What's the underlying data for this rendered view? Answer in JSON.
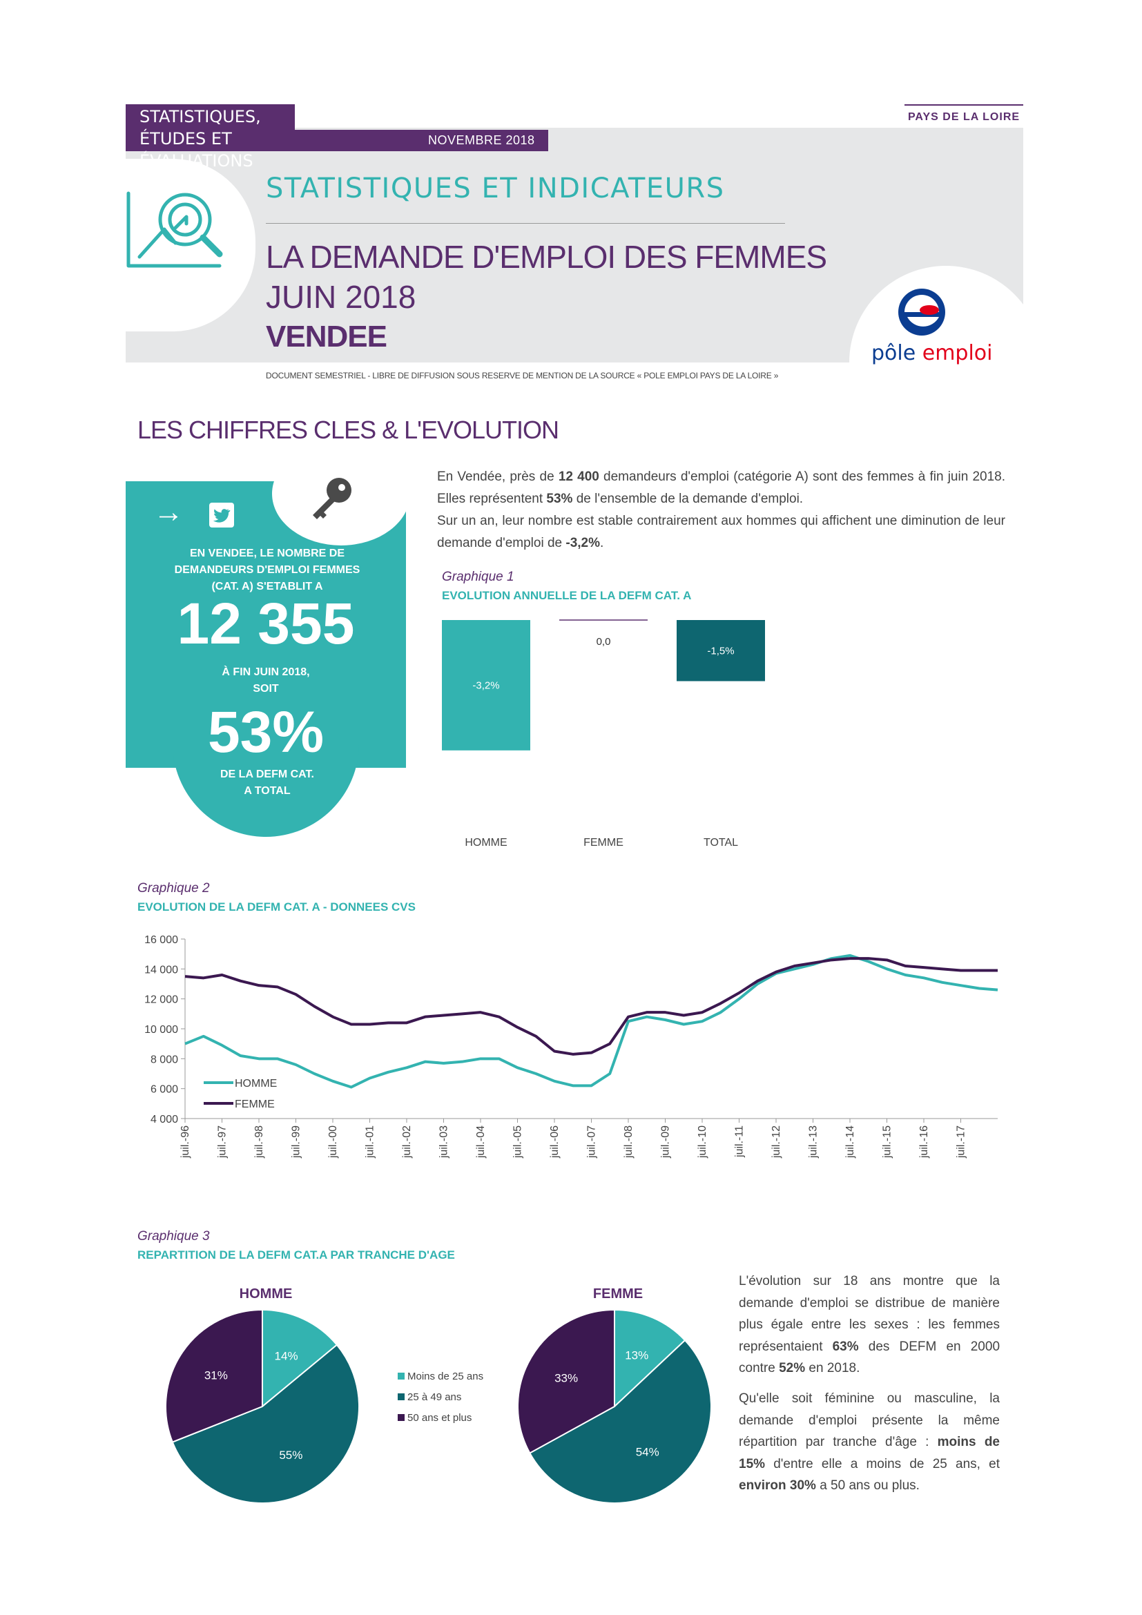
{
  "header": {
    "department_line1": "STATISTIQUES,",
    "department_line2": "ÉTUDES ET ÉVALUATIONS",
    "date": "NOVEMBRE 2018",
    "region": "PAYS DE LA LOIRE",
    "subtitle": "STATISTIQUES ET INDICATEURS",
    "title_line1": "LA DEMANDE D'EMPLOI DES FEMMES",
    "title_line2": "JUIN 2018",
    "title_line3": "VENDEE",
    "note": "DOCUMENT SEMESTRIEL - LIBRE DE DIFFUSION SOUS RESERVE DE MENTION DE LA SOURCE « POLE EMPLOI PAYS DE LA LOIRE »",
    "logo_text": "pôle emploi",
    "logo_colors": {
      "blue": "#0b3d91",
      "red": "#e2001a"
    }
  },
  "section_title": "LES CHIFFRES CLES &  L'EVOLUTION",
  "key_card": {
    "line1": "EN VENDEE, LE NOMBRE DE",
    "line2": "DEMANDEURS D'EMPLOI FEMMES",
    "line3": "(CAT. A) S'ETABLIT A",
    "big_number": "12 355",
    "line4": "À FIN JUIN 2018,",
    "line5": "SOIT",
    "big_pct": "53%",
    "line6": "DE LA DEFM CAT.",
    "line7": "A TOTAL",
    "arrow": "→",
    "icons": [
      "twitter-icon",
      "key-icon"
    ]
  },
  "intro": {
    "p1_a": "En Vendée, près de ",
    "p1_b": "12 400",
    "p1_c": " demandeurs d'emploi (catégorie A) sont des femmes à fin juin 2018. Elles représentent ",
    "p1_d": "53%",
    "p1_e": " de l'ensemble de la demande d'emploi.",
    "p2_a": "Sur un an, leur nombre est stable contrairement aux hommes qui affichent une diminution de leur demande d'emploi de ",
    "p2_b": "-3,2%",
    "p2_c": "."
  },
  "graph1": {
    "label": "Graphique 1",
    "title": "EVOLUTION ANNUELLE DE LA DEFM CAT. A"
  },
  "graph2": {
    "label": "Graphique 2",
    "title": "EVOLUTION DE LA DEFM CAT. A - DONNEES CVS"
  },
  "graph3": {
    "label": "Graphique 3",
    "title": "REPARTITION DE LA DEFM CAT.A PAR TRANCHE D'AGE"
  },
  "colors": {
    "teal": "#33b3b0",
    "dark_teal": "#0e6670",
    "purple": "#5a2e6e",
    "dark_purple": "#3b1850"
  },
  "outro": {
    "p1_a": "L'évolution sur 18 ans montre que la demande d'emploi se distribue de manière plus égale entre les sexes : les femmes représentaient ",
    "p1_b": "63%",
    "p1_c": " des DEFM en 2000 contre ",
    "p1_d": "52%",
    "p1_e": "  en 2018.",
    "p2_a": "Qu'elle soit féminine ou masculine, la demande d'emploi présente la même répartition par tranche d'âge : ",
    "p2_b": "moins de 15%",
    "p2_c": " d'entre elle a moins de 25 ans, et ",
    "p2_d": "environ 30%",
    "p2_e": " a 50 ans ou plus."
  },
  "chart_data": [
    {
      "type": "bar",
      "categories": [
        "HOMME",
        "FEMME",
        "TOTAL"
      ],
      "values": [
        -3.2,
        0.0,
        -1.5
      ],
      "value_labels": [
        "-3,2%",
        "0,0",
        "-1,5%"
      ],
      "colors": [
        "#33b3b0",
        "#5a2e6e",
        "#0e6670"
      ]
    },
    {
      "type": "line",
      "ylim": [
        4000,
        16000
      ],
      "yticks": [
        "16 000",
        "14 000",
        "12 000",
        "10 000",
        "8 000",
        "6 000",
        "4 000"
      ],
      "ytick_values": [
        16000,
        14000,
        12000,
        10000,
        8000,
        6000,
        4000
      ],
      "xticks": [
        "juil.-96",
        "juil.-97",
        "juil.-98",
        "juil.-99",
        "juil.-00",
        "juil.-01",
        "juil.-02",
        "juil.-03",
        "juil.-04",
        "juil.-05",
        "juil.-06",
        "juil.-07",
        "juil.-08",
        "juil.-09",
        "juil.-10",
        "juil.-11",
        "juil.-12",
        "juil.-13",
        "juil.-14",
        "juil.-15",
        "juil.-16",
        "juil.-17"
      ],
      "x": [
        1996.5,
        1997.0,
        1997.5,
        1998.0,
        1998.5,
        1999.0,
        1999.5,
        2000.0,
        2000.5,
        2001.0,
        2001.5,
        2002.0,
        2002.5,
        2003.0,
        2003.5,
        2004.0,
        2004.5,
        2005.0,
        2005.5,
        2006.0,
        2006.5,
        2007.0,
        2007.5,
        2008.0,
        2008.5,
        2009.0,
        2009.5,
        2010.0,
        2010.5,
        2011.0,
        2011.5,
        2012.0,
        2012.5,
        2013.0,
        2013.5,
        2014.0,
        2014.5,
        2015.0,
        2015.5,
        2016.0,
        2016.5,
        2017.0,
        2017.5,
        2018.0,
        2018.5
      ],
      "series": [
        {
          "name": "HOMME",
          "color": "#33b3b0",
          "values": [
            9000,
            9500,
            8900,
            8200,
            8000,
            8000,
            7600,
            7000,
            6500,
            6100,
            6700,
            7100,
            7400,
            7800,
            7700,
            7800,
            8000,
            8000,
            7400,
            7000,
            6500,
            6200,
            6200,
            7000,
            10500,
            10800,
            10600,
            10300,
            10500,
            11100,
            12000,
            13000,
            13700,
            14000,
            14300,
            14700,
            14900,
            14500,
            14000,
            13600,
            13400,
            13100,
            12900,
            12700,
            12600
          ]
        },
        {
          "name": "FEMME",
          "color": "#3b1850",
          "values": [
            13500,
            13400,
            13600,
            13200,
            12900,
            12800,
            12300,
            11500,
            10800,
            10300,
            10300,
            10400,
            10400,
            10800,
            10900,
            11000,
            11100,
            10800,
            10100,
            9500,
            8500,
            8300,
            8400,
            9000,
            10800,
            11100,
            11100,
            10900,
            11100,
            11700,
            12400,
            13200,
            13800,
            14200,
            14400,
            14600,
            14700,
            14700,
            14600,
            14200,
            14100,
            14000,
            13900,
            13900,
            13900
          ]
        }
      ]
    },
    {
      "type": "pie",
      "title": "HOMME",
      "labels": [
        "Moins de 25 ans",
        "25 à 49 ans",
        "50 ans et plus"
      ],
      "values": [
        14,
        55,
        31
      ],
      "value_labels": [
        "14%",
        "55%",
        "31%"
      ],
      "colors": [
        "#33b3b0",
        "#0e6670",
        "#3b1850"
      ]
    },
    {
      "type": "pie",
      "title": "FEMME",
      "labels": [
        "Moins de 25 ans",
        "25 à 49 ans",
        "50 ans et plus"
      ],
      "values": [
        13,
        54,
        33
      ],
      "value_labels": [
        "13%",
        "54%",
        "33%"
      ],
      "colors": [
        "#33b3b0",
        "#0e6670",
        "#3b1850"
      ]
    }
  ]
}
